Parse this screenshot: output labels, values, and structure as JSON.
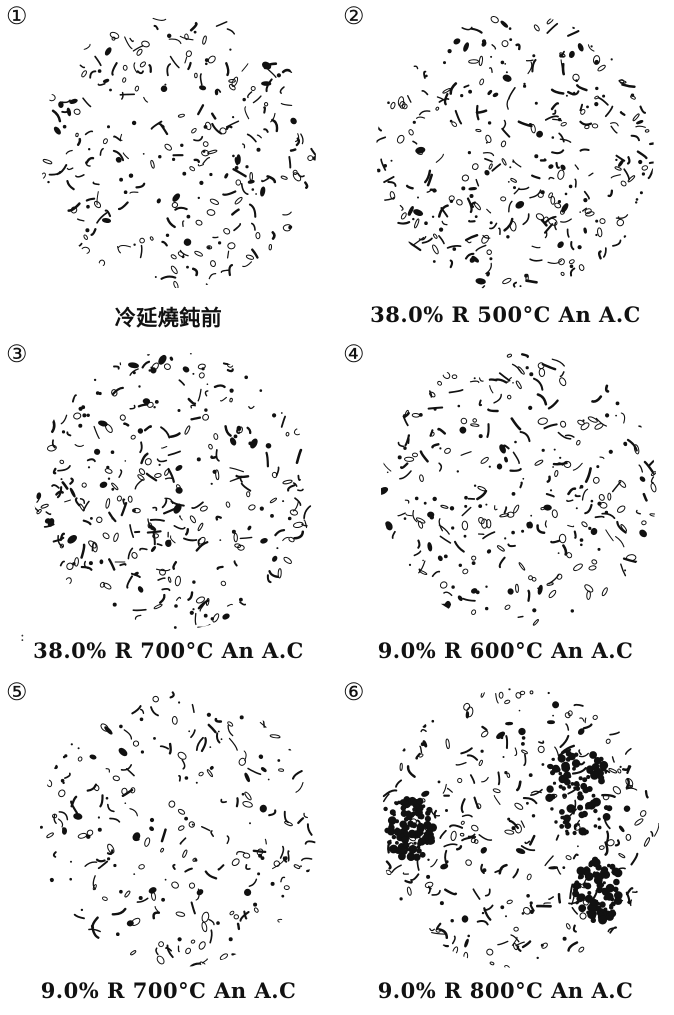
{
  "figure": {
    "panels": [
      {
        "number": "①",
        "caption": "冷延燒鈍前",
        "density": 0.55,
        "dark_patches": 0
      },
      {
        "number": "②",
        "caption": "38.0% R 500°C An A.C",
        "density": 0.8,
        "dark_patches": 0
      },
      {
        "number": "③",
        "caption": "38.0% R 700°C An A.C",
        "density": 0.75,
        "dark_patches": 0
      },
      {
        "number": "④",
        "caption": "9.0% R 600°C An A.C",
        "density": 0.65,
        "dark_patches": 0
      },
      {
        "number": "⑤",
        "caption": "9.0% R 700°C An A.C",
        "density": 0.45,
        "dark_patches": 0
      },
      {
        "number": "⑥",
        "caption": "9.0% R 800°C An A.C",
        "density": 0.7,
        "dark_patches": 3
      }
    ]
  },
  "colors": {
    "ink": "#111111",
    "background": "#ffffff"
  }
}
